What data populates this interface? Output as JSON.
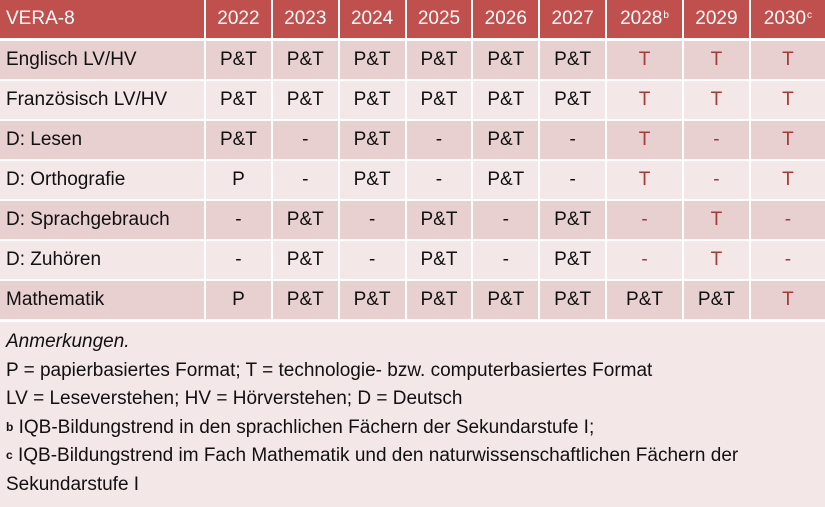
{
  "table": {
    "title": "VERA-8",
    "years": [
      {
        "label": "2022",
        "sup": ""
      },
      {
        "label": "2023",
        "sup": ""
      },
      {
        "label": "2024",
        "sup": ""
      },
      {
        "label": "2025",
        "sup": ""
      },
      {
        "label": "2026",
        "sup": ""
      },
      {
        "label": "2027",
        "sup": ""
      },
      {
        "label": "2028",
        "sup": "b"
      },
      {
        "label": "2029",
        "sup": ""
      },
      {
        "label": "2030",
        "sup": "c"
      }
    ],
    "rows": [
      {
        "subject": "Englisch LV/HV",
        "values": [
          "P&T",
          "P&T",
          "P&T",
          "P&T",
          "P&T",
          "P&T",
          "T",
          "T",
          "T"
        ]
      },
      {
        "subject": "Französisch LV/HV",
        "values": [
          "P&T",
          "P&T",
          "P&T",
          "P&T",
          "P&T",
          "P&T",
          "T",
          "T",
          "T"
        ]
      },
      {
        "subject": "D: Lesen",
        "values": [
          "P&T",
          "-",
          "P&T",
          "-",
          "P&T",
          "-",
          "T",
          "-",
          "T"
        ]
      },
      {
        "subject": "D: Orthografie",
        "values": [
          "P",
          "-",
          "P&T",
          "-",
          "P&T",
          "-",
          "T",
          "-",
          "T"
        ]
      },
      {
        "subject": "D: Sprachgebrauch",
        "values": [
          "-",
          "P&T",
          "-",
          "P&T",
          "-",
          "P&T",
          "-",
          "T",
          "-"
        ]
      },
      {
        "subject": "D: Zuhören",
        "values": [
          "-",
          "P&T",
          "-",
          "P&T",
          "-",
          "P&T",
          "-",
          "T",
          "-"
        ]
      },
      {
        "subject": "Mathematik",
        "values": [
          "P",
          "P&T",
          "P&T",
          "P&T",
          "P&T",
          "P&T",
          "P&T",
          "P&T",
          "T"
        ]
      }
    ]
  },
  "notes": {
    "title": "Anmerkungen.",
    "lines": [
      {
        "marker": "",
        "text": "P = papierbasiertes Format; T = technologie- bzw. computerbasiertes Format"
      },
      {
        "marker": "",
        "text": "LV = Leseverstehen; HV = Hörverstehen; D = Deutsch"
      },
      {
        "marker": "b",
        "text": " IQB-Bildungstrend in den sprachlichen Fächern der Sekundarstufe I;"
      },
      {
        "marker": "c",
        "text": " IQB-Bildungstrend im Fach Mathematik und den naturwissenschaftlichen Fächern der Sekundarstufe I"
      }
    ]
  },
  "colors": {
    "header": "#C0504D",
    "row_dark": "#E8D0D1",
    "row_light": "#F3E7E7",
    "future_text": "#A33A37"
  }
}
